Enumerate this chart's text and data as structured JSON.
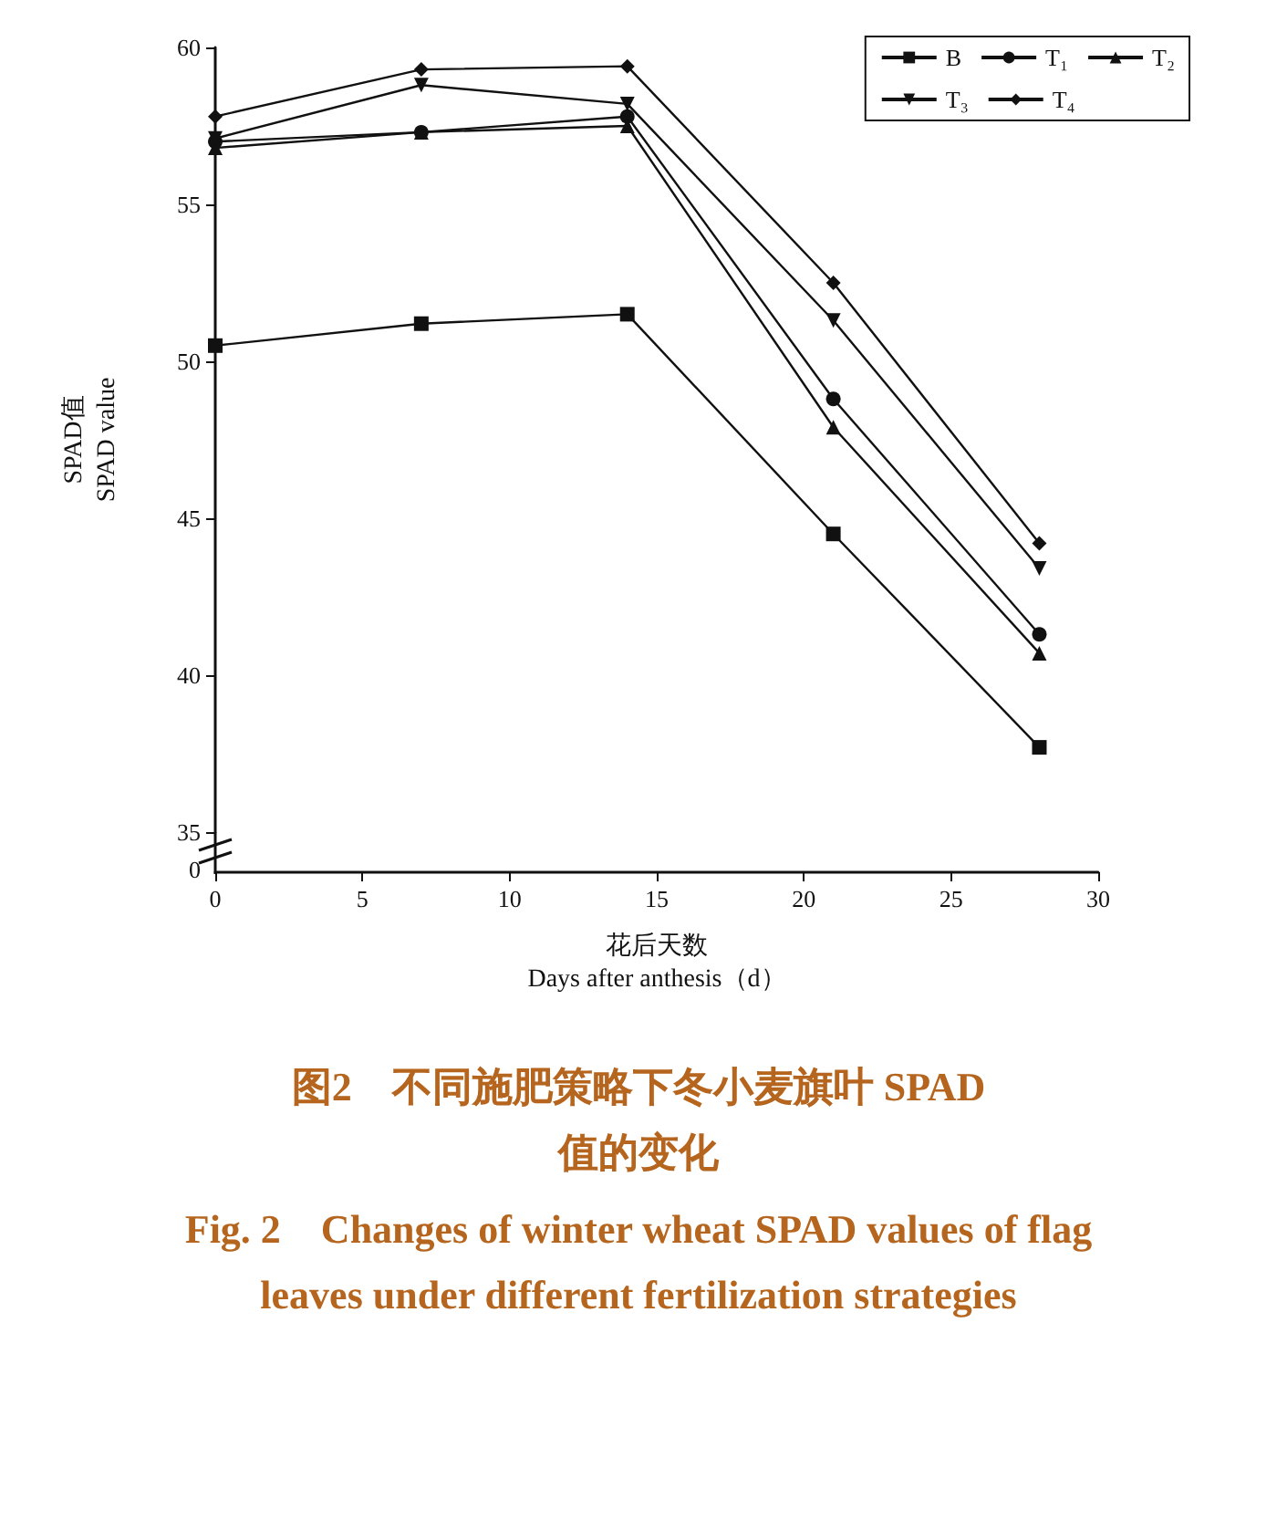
{
  "chart_data": {
    "type": "line",
    "title": "图2　不同施肥策略下冬小麦旗叶 SPAD 值的变化",
    "subtitle": "Fig. 2　Changes of winter wheat SPAD values of flag leaves under different fertilization strategies",
    "xlabel": "花后天数\nDays after anthesis（d）",
    "ylabel": "SPAD值\nSPAD value",
    "annotations": [
      "0"
    ],
    "x": [
      0,
      7,
      14,
      21,
      28
    ],
    "xlim": [
      0,
      30
    ],
    "xticks": [
      0,
      5,
      10,
      15,
      20,
      25,
      30
    ],
    "ylim": [
      35,
      60
    ],
    "yticks": [
      35,
      40,
      45,
      50,
      55,
      60
    ],
    "legend": "top right",
    "grid": false,
    "series": [
      {
        "name": "B",
        "color": "#111111",
        "marker": "square",
        "values": [
          50.5,
          51.2,
          51.5,
          44.5,
          37.7
        ]
      },
      {
        "name": "T₁",
        "color": "#111111",
        "marker": "circle",
        "values": [
          57.0,
          57.3,
          57.8,
          48.8,
          41.3
        ]
      },
      {
        "name": "T₂",
        "color": "#111111",
        "marker": "triangle",
        "values": [
          56.8,
          57.3,
          57.5,
          47.9,
          40.7
        ]
      },
      {
        "name": "T₃",
        "color": "#111111",
        "marker": "triangle-down",
        "values": [
          57.1,
          58.8,
          58.2,
          51.3,
          43.4
        ]
      },
      {
        "name": "T₄",
        "color": "#111111",
        "marker": "diamond",
        "values": [
          57.8,
          59.3,
          59.4,
          52.5,
          44.2
        ]
      }
    ]
  }
}
